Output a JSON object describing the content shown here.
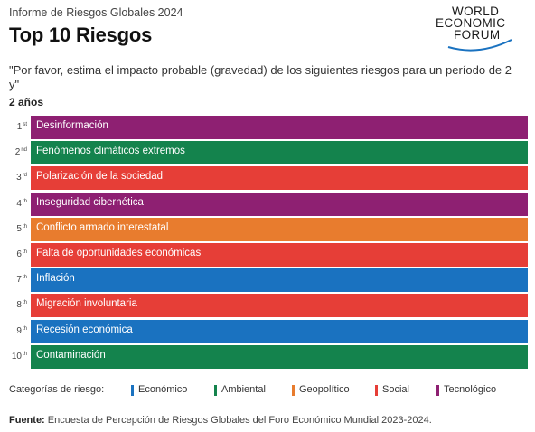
{
  "header": {
    "report_title": "Informe de Riesgos Globales 2024",
    "main_title": "Top 10 Riesgos",
    "logo": {
      "line1": "WORLD",
      "line2": "ECONOMIC",
      "line3": "FORUM"
    }
  },
  "question": "\"Por favor, estima el impacto probable (gravedad) de los siguientes riesgos para un período de 2 y\"",
  "period": "2 años",
  "colors": {
    "Económico": "#1a72c0",
    "Ambiental": "#14834d",
    "Geopolítico": "#e87c2e",
    "Social": "#e63e37",
    "Tecnológico": "#8e2072"
  },
  "chart_data": {
    "type": "table",
    "rows": [
      {
        "rank": "1",
        "suffix": "st",
        "label": "Desinformación",
        "category": "Tecnológico"
      },
      {
        "rank": "2",
        "suffix": "nd",
        "label": "Fenómenos climáticos extremos",
        "category": "Ambiental"
      },
      {
        "rank": "3",
        "suffix": "rd",
        "label": "Polarización de la sociedad",
        "category": "Social"
      },
      {
        "rank": "4",
        "suffix": "th",
        "label": "Inseguridad cibernética",
        "category": "Tecnológico"
      },
      {
        "rank": "5",
        "suffix": "th",
        "label": "Conflicto armado interestatal",
        "category": "Geopolítico"
      },
      {
        "rank": "6",
        "suffix": "th",
        "label": "Falta de oportunidades económicas",
        "category": "Social"
      },
      {
        "rank": "7",
        "suffix": "th",
        "label": "Inflación",
        "category": "Económico"
      },
      {
        "rank": "8",
        "suffix": "th",
        "label": "Migración involuntaria",
        "category": "Social"
      },
      {
        "rank": "9",
        "suffix": "th",
        "label": "Recesión económica",
        "category": "Económico"
      },
      {
        "rank": "10",
        "suffix": "th",
        "label": "Contaminación",
        "category": "Ambiental"
      }
    ]
  },
  "legend": {
    "title": "Categorías de riesgo:",
    "items": [
      "Económico",
      "Ambiental",
      "Geopolítico",
      "Social",
      "Tecnológico"
    ]
  },
  "source": {
    "label": "Fuente:",
    "text": "Encuesta de Percepción de Riesgos Globales del Foro Económico Mundial 2023-2024."
  }
}
